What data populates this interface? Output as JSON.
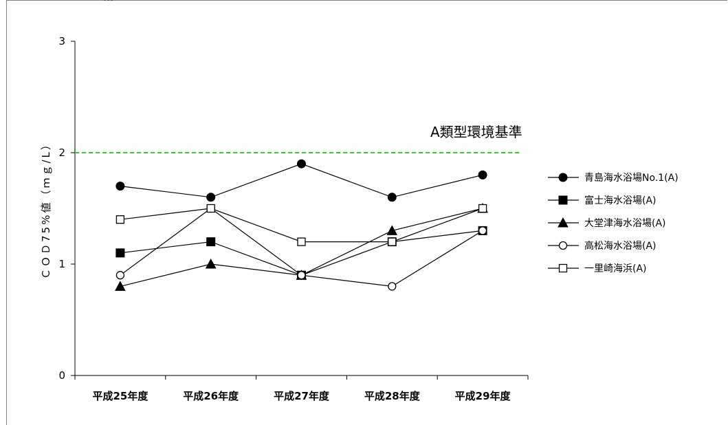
{
  "header": {
    "caption": "..."
  },
  "chart_data": {
    "type": "line",
    "title": "",
    "xlabel": "",
    "ylabel": "ＣＯＤ75%値（ｍｇ/L）",
    "ylim": [
      0,
      3
    ],
    "yticks": [
      0,
      1,
      2,
      3
    ],
    "categories": [
      "平成25年度",
      "平成26年度",
      "平成27年度",
      "平成28年度",
      "平成29年度"
    ],
    "reference_line": {
      "label": "A類型環境基準",
      "value": 2,
      "color": "#33cc33"
    },
    "legend_position": "right",
    "series": [
      {
        "name": "青島海水浴場No.1(A)",
        "marker": "filled-circle",
        "values": [
          1.7,
          1.6,
          1.9,
          1.6,
          1.8
        ]
      },
      {
        "name": "富士海水浴場(A)",
        "marker": "filled-square",
        "values": [
          1.1,
          1.2,
          0.9,
          1.2,
          1.3
        ]
      },
      {
        "name": "大堂津海水浴場(A)",
        "marker": "filled-triangle",
        "values": [
          0.8,
          1.0,
          0.9,
          1.3,
          1.5
        ]
      },
      {
        "name": "高松海水浴場(A)",
        "marker": "open-circle",
        "values": [
          0.9,
          1.5,
          0.9,
          0.8,
          1.3
        ]
      },
      {
        "name": "一里崎海浜(A)",
        "marker": "open-square",
        "values": [
          1.4,
          1.5,
          1.2,
          1.2,
          1.5
        ]
      }
    ]
  }
}
